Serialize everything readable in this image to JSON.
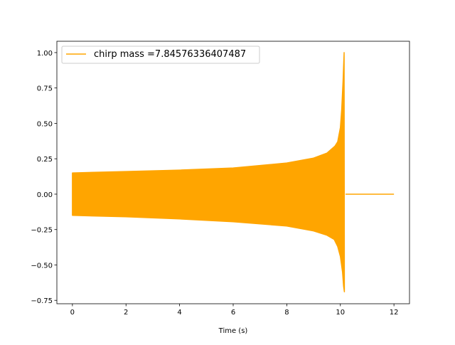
{
  "chart_data": {
    "type": "line",
    "title": "",
    "xlabel": "Time (s)",
    "ylabel": "",
    "xlim": [
      -0.58,
      12.58
    ],
    "ylim": [
      -0.774,
      1.08
    ],
    "xticks": [
      0,
      2,
      4,
      6,
      8,
      10,
      12
    ],
    "xtick_labels": [
      "0",
      "2",
      "4",
      "6",
      "8",
      "10",
      "12"
    ],
    "yticks": [
      1.0,
      0.75,
      0.5,
      0.25,
      0.0,
      -0.25,
      -0.5,
      -0.75
    ],
    "ytick_labels": [
      "1.00",
      "0.75",
      "0.50",
      "0.25",
      "0.00",
      "−0.25",
      "−0.50",
      "−0.75"
    ],
    "grid": false,
    "legend_placement": "upper left",
    "series": [
      {
        "name": "chirp mass =7.84576336407487",
        "color": "#ffa500",
        "note_rendering": "dense oscillation, drawn as envelope",
        "upper_envelope": {
          "t": [
            0,
            2,
            4,
            6,
            8,
            9,
            9.5,
            9.8,
            9.9,
            10.0,
            10.05,
            10.1,
            10.14
          ],
          "h": [
            0.15,
            0.16,
            0.17,
            0.185,
            0.22,
            0.255,
            0.29,
            0.34,
            0.37,
            0.47,
            0.6,
            0.8,
            1.0
          ]
        },
        "lower_envelope": {
          "t": [
            0,
            2,
            4,
            6,
            8,
            9,
            9.5,
            9.77,
            9.9,
            10.0,
            10.08,
            10.12,
            10.15
          ],
          "h": [
            -0.15,
            -0.16,
            -0.175,
            -0.195,
            -0.225,
            -0.26,
            -0.29,
            -0.32,
            -0.37,
            -0.44,
            -0.55,
            -0.65,
            -0.69
          ]
        },
        "zero_segment": {
          "t": [
            10.19,
            12.0
          ],
          "h": [
            0,
            0
          ]
        }
      }
    ]
  }
}
